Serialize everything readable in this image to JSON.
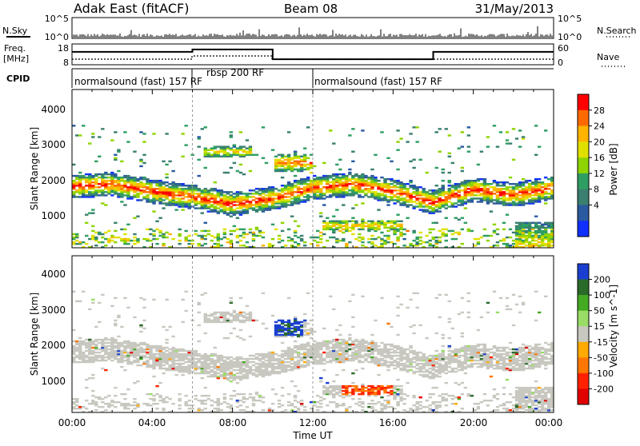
{
  "header": {
    "station": "Adak East (fitACF)",
    "beam": "Beam 08",
    "date": "31/May/2013"
  },
  "nsky_panel": {
    "left_label": "N.Sky",
    "right_label": "N.Search",
    "left_ticks": [
      "10^5",
      "10^0"
    ],
    "right_ticks": [
      "10^5",
      "10^0"
    ]
  },
  "freq_panel": {
    "left_label_line1": "Freq.",
    "left_label_line2": "[MHz]",
    "left_ticks": [
      "18",
      "8"
    ],
    "right_label": "Nave",
    "right_ticks": [
      "60",
      "0"
    ]
  },
  "cpid_panel": {
    "label": "CPID",
    "segments": [
      {
        "text": "normalsound (fast) 157 RF"
      },
      {
        "text": "rbsp 200 RF"
      },
      {
        "text": "normalsound (fast) 157 RF"
      }
    ]
  },
  "x_axis": {
    "label": "Time UT",
    "ticks": [
      "00:00",
      "04:00",
      "08:00",
      "12:00",
      "16:00",
      "20:00",
      "00:00"
    ]
  },
  "power_panel": {
    "ylabel": "Slant Range [km]",
    "yticks": [
      "4000",
      "3000",
      "2000",
      "1000"
    ],
    "colorbar": {
      "label": "Power [dB]",
      "ticks": [
        "28",
        "24",
        "20",
        "16",
        "12",
        "8",
        "4"
      ],
      "colors": [
        "#ff0000",
        "#ff6a00",
        "#ffb400",
        "#e0e000",
        "#8fd400",
        "#2f9e63",
        "#3a7f70",
        "#2a5aa0",
        "#1030ff"
      ]
    }
  },
  "velocity_panel": {
    "ylabel": "Slant Range [km]",
    "yticks": [
      "4000",
      "3000",
      "2000",
      "1000"
    ],
    "colorbar": {
      "label": "Velocity [m s^-1]",
      "ticks": [
        "200",
        "100",
        "50",
        "15",
        "-15",
        "-50",
        "-100",
        "-200"
      ],
      "colors": [
        "#1a3fd0",
        "#2a6a2a",
        "#44aa22",
        "#99dd66",
        "#c8c8c0",
        "#ffaa00",
        "#ff7700",
        "#ff2200",
        "#e00000"
      ]
    }
  },
  "chart_data": {
    "type": "heatmap",
    "title": "Adak East (fitACF) Beam 08 31/May/2013",
    "xlabel": "Time UT",
    "ylabel": "Slant Range [km]",
    "xlim_hours": [
      0,
      24
    ],
    "ylim_km": [
      200,
      4600
    ],
    "power_colorbar_range_db": [
      0,
      30
    ],
    "velocity_colorbar_range_ms": [
      -250,
      250
    ],
    "cpid_segments_hours": [
      {
        "label": "normalsound (fast) 157 RF",
        "start": 0,
        "end": 6
      },
      {
        "label": "rbsp 200 RF",
        "start": 6,
        "end": 12
      },
      {
        "label": "normalsound (fast) 157 RF",
        "start": 12,
        "end": 24
      }
    ],
    "frequency_mhz_steps": [
      {
        "start": 0,
        "end": 6,
        "value": 14.4
      },
      {
        "start": 6,
        "end": 10,
        "value": 15.8
      },
      {
        "start": 10,
        "end": 18,
        "value": 10.2
      },
      {
        "start": 18,
        "end": 24,
        "value": 14.4
      }
    ],
    "main_band_km": [
      {
        "t": 0,
        "r": 1900
      },
      {
        "t": 2,
        "r": 1950
      },
      {
        "t": 4,
        "r": 1750
      },
      {
        "t": 6,
        "r": 1600
      },
      {
        "t": 8,
        "r": 1400
      },
      {
        "t": 10,
        "r": 1550
      },
      {
        "t": 12,
        "r": 1850
      },
      {
        "t": 14,
        "r": 1950
      },
      {
        "t": 16,
        "r": 1750
      },
      {
        "t": 18,
        "r": 1450
      },
      {
        "t": 20,
        "r": 1800
      },
      {
        "t": 22,
        "r": 1650
      },
      {
        "t": 24,
        "r": 1850
      }
    ]
  }
}
